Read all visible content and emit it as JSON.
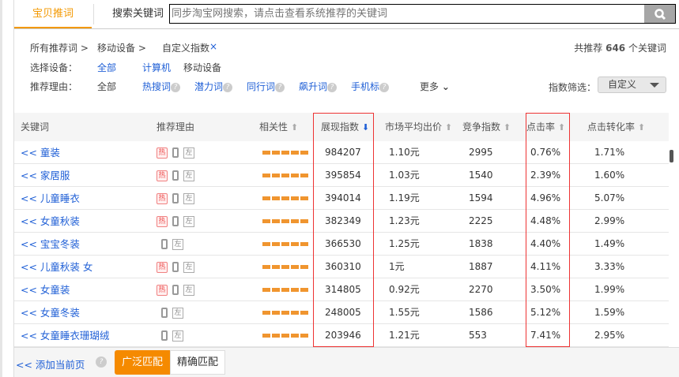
{
  "tabs": [
    {
      "label": "宝贝推词",
      "active": true
    },
    {
      "label": "搜索关键词",
      "active": false
    }
  ],
  "search": {
    "placeholder": "同步淘宝网搜索，请点击查看系统推荐的关键词",
    "icon": "search-icon"
  },
  "breadcrumb": [
    "所有推荐词 >",
    "移动设备 >",
    "自定义指数",
    "×"
  ],
  "total": {
    "prefix": "共推荐",
    "count": "646",
    "suffix": "个关键词"
  },
  "device": {
    "label": "选择设备：",
    "options": [
      "全部",
      "计算机",
      "移动设备"
    ]
  },
  "reason": {
    "label": "推荐理由：",
    "options": [
      "全部",
      "热搜词",
      "潜力词",
      "同行词",
      "飙升词",
      "手机标"
    ],
    "more": "更多"
  },
  "index_filter": {
    "label": "指数筛选：",
    "value": "自定义"
  },
  "columns": [
    "关键词",
    "推荐理由",
    "相关性",
    "展现指数",
    "市场平均出价",
    "竞争指数",
    "点击率",
    "点击转化率"
  ],
  "rows": [
    {
      "kw": "<< 童装",
      "hot": true,
      "rel": 5,
      "imp": "984207",
      "bid": "1.10元",
      "comp": "2995",
      "ctr": "0.76%",
      "cvr": "1.71%"
    },
    {
      "kw": "<< 家居服",
      "hot": true,
      "rel": 5,
      "imp": "395854",
      "bid": "1.03元",
      "comp": "1540",
      "ctr": "2.39%",
      "cvr": "1.60%"
    },
    {
      "kw": "<< 儿童睡衣",
      "hot": true,
      "rel": 5,
      "imp": "394014",
      "bid": "1.19元",
      "comp": "1594",
      "ctr": "4.96%",
      "cvr": "5.07%"
    },
    {
      "kw": "<< 女童秋装",
      "hot": true,
      "rel": 5,
      "imp": "382349",
      "bid": "1.23元",
      "comp": "2225",
      "ctr": "4.48%",
      "cvr": "2.99%"
    },
    {
      "kw": "<< 宝宝冬装",
      "hot": false,
      "rel": 5,
      "imp": "366530",
      "bid": "1.25元",
      "comp": "1838",
      "ctr": "4.40%",
      "cvr": "1.49%"
    },
    {
      "kw": "<< 儿童秋装 女",
      "hot": true,
      "rel": 5,
      "imp": "360310",
      "bid": "1元",
      "comp": "1887",
      "ctr": "4.11%",
      "cvr": "3.33%"
    },
    {
      "kw": "<< 女童装",
      "hot": true,
      "rel": 5,
      "imp": "314805",
      "bid": "0.92元",
      "comp": "2270",
      "ctr": "3.50%",
      "cvr": "1.99%"
    },
    {
      "kw": "<< 女童冬装",
      "hot": false,
      "rel": 5,
      "imp": "248005",
      "bid": "1.55元",
      "comp": "1586",
      "ctr": "5.12%",
      "cvr": "1.59%"
    },
    {
      "kw": "<< 女童睡衣珊瑚绒",
      "hot": false,
      "rel": 5,
      "imp": "203946",
      "bid": "1.21元",
      "comp": "553",
      "ctr": "7.41%",
      "cvr": "2.95%"
    }
  ],
  "badges": {
    "hot": "热",
    "left": "左"
  },
  "bottom": {
    "add_page": "<<  添加当前页",
    "broad": "广泛匹配",
    "exact": "精确匹配"
  },
  "colors": {
    "accent": "#f39800",
    "link": "#1f5fd6",
    "highlight_box": "#e33333"
  }
}
